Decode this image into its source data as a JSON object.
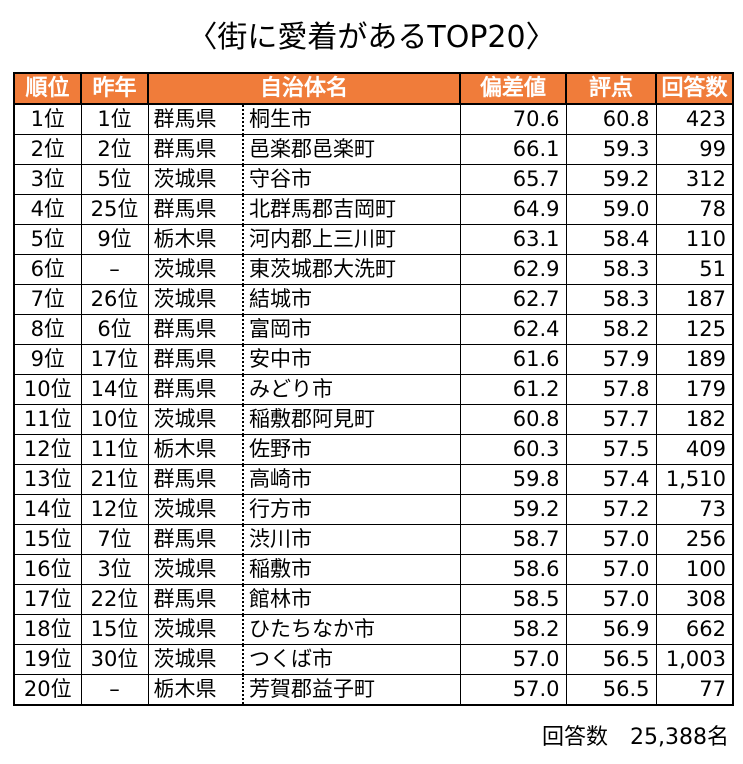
{
  "title": "〈街に愛着があるTOP20〉",
  "headers": {
    "rank": "順位",
    "prev": "昨年",
    "municipality": "自治体名",
    "deviation": "偏差値",
    "score": "評点",
    "responses": "回答数"
  },
  "rows": [
    {
      "rank": "1位",
      "prev": "1位",
      "pref": "群馬県",
      "muni": "桐生市",
      "dev": "70.6",
      "score": "60.8",
      "resp": "423"
    },
    {
      "rank": "2位",
      "prev": "2位",
      "pref": "群馬県",
      "muni": "邑楽郡邑楽町",
      "dev": "66.1",
      "score": "59.3",
      "resp": "99"
    },
    {
      "rank": "3位",
      "prev": "5位",
      "pref": "茨城県",
      "muni": "守谷市",
      "dev": "65.7",
      "score": "59.2",
      "resp": "312"
    },
    {
      "rank": "4位",
      "prev": "25位",
      "pref": "群馬県",
      "muni": "北群馬郡吉岡町",
      "dev": "64.9",
      "score": "59.0",
      "resp": "78"
    },
    {
      "rank": "5位",
      "prev": "9位",
      "pref": "栃木県",
      "muni": "河内郡上三川町",
      "dev": "63.1",
      "score": "58.4",
      "resp": "110"
    },
    {
      "rank": "6位",
      "prev": "–",
      "pref": "茨城県",
      "muni": "東茨城郡大洗町",
      "dev": "62.9",
      "score": "58.3",
      "resp": "51"
    },
    {
      "rank": "7位",
      "prev": "26位",
      "pref": "茨城県",
      "muni": "結城市",
      "dev": "62.7",
      "score": "58.3",
      "resp": "187"
    },
    {
      "rank": "8位",
      "prev": "6位",
      "pref": "群馬県",
      "muni": "富岡市",
      "dev": "62.4",
      "score": "58.2",
      "resp": "125"
    },
    {
      "rank": "9位",
      "prev": "17位",
      "pref": "群馬県",
      "muni": "安中市",
      "dev": "61.6",
      "score": "57.9",
      "resp": "189"
    },
    {
      "rank": "10位",
      "prev": "14位",
      "pref": "群馬県",
      "muni": "みどり市",
      "dev": "61.2",
      "score": "57.8",
      "resp": "179"
    },
    {
      "rank": "11位",
      "prev": "10位",
      "pref": "茨城県",
      "muni": "稲敷郡阿見町",
      "dev": "60.8",
      "score": "57.7",
      "resp": "182"
    },
    {
      "rank": "12位",
      "prev": "11位",
      "pref": "栃木県",
      "muni": "佐野市",
      "dev": "60.3",
      "score": "57.5",
      "resp": "409"
    },
    {
      "rank": "13位",
      "prev": "21位",
      "pref": "群馬県",
      "muni": "高崎市",
      "dev": "59.8",
      "score": "57.4",
      "resp": "1,510"
    },
    {
      "rank": "14位",
      "prev": "12位",
      "pref": "茨城県",
      "muni": "行方市",
      "dev": "59.2",
      "score": "57.2",
      "resp": "73"
    },
    {
      "rank": "15位",
      "prev": "7位",
      "pref": "群馬県",
      "muni": "渋川市",
      "dev": "58.7",
      "score": "57.0",
      "resp": "256"
    },
    {
      "rank": "16位",
      "prev": "3位",
      "pref": "茨城県",
      "muni": "稲敷市",
      "dev": "58.6",
      "score": "57.0",
      "resp": "100"
    },
    {
      "rank": "17位",
      "prev": "22位",
      "pref": "群馬県",
      "muni": "館林市",
      "dev": "58.5",
      "score": "57.0",
      "resp": "308"
    },
    {
      "rank": "18位",
      "prev": "15位",
      "pref": "茨城県",
      "muni": "ひたちなか市",
      "dev": "58.2",
      "score": "56.9",
      "resp": "662"
    },
    {
      "rank": "19位",
      "prev": "30位",
      "pref": "茨城県",
      "muni": "つくば市",
      "dev": "57.0",
      "score": "56.5",
      "resp": "1,003"
    },
    {
      "rank": "20位",
      "prev": "–",
      "pref": "栃木県",
      "muni": "芳賀郡益子町",
      "dev": "57.0",
      "score": "56.5",
      "resp": "77"
    }
  ],
  "footer": {
    "label": "回答数",
    "value": "25,388名"
  },
  "colors": {
    "header_bg": "#f07c3a",
    "header_text": "#ffffff"
  }
}
